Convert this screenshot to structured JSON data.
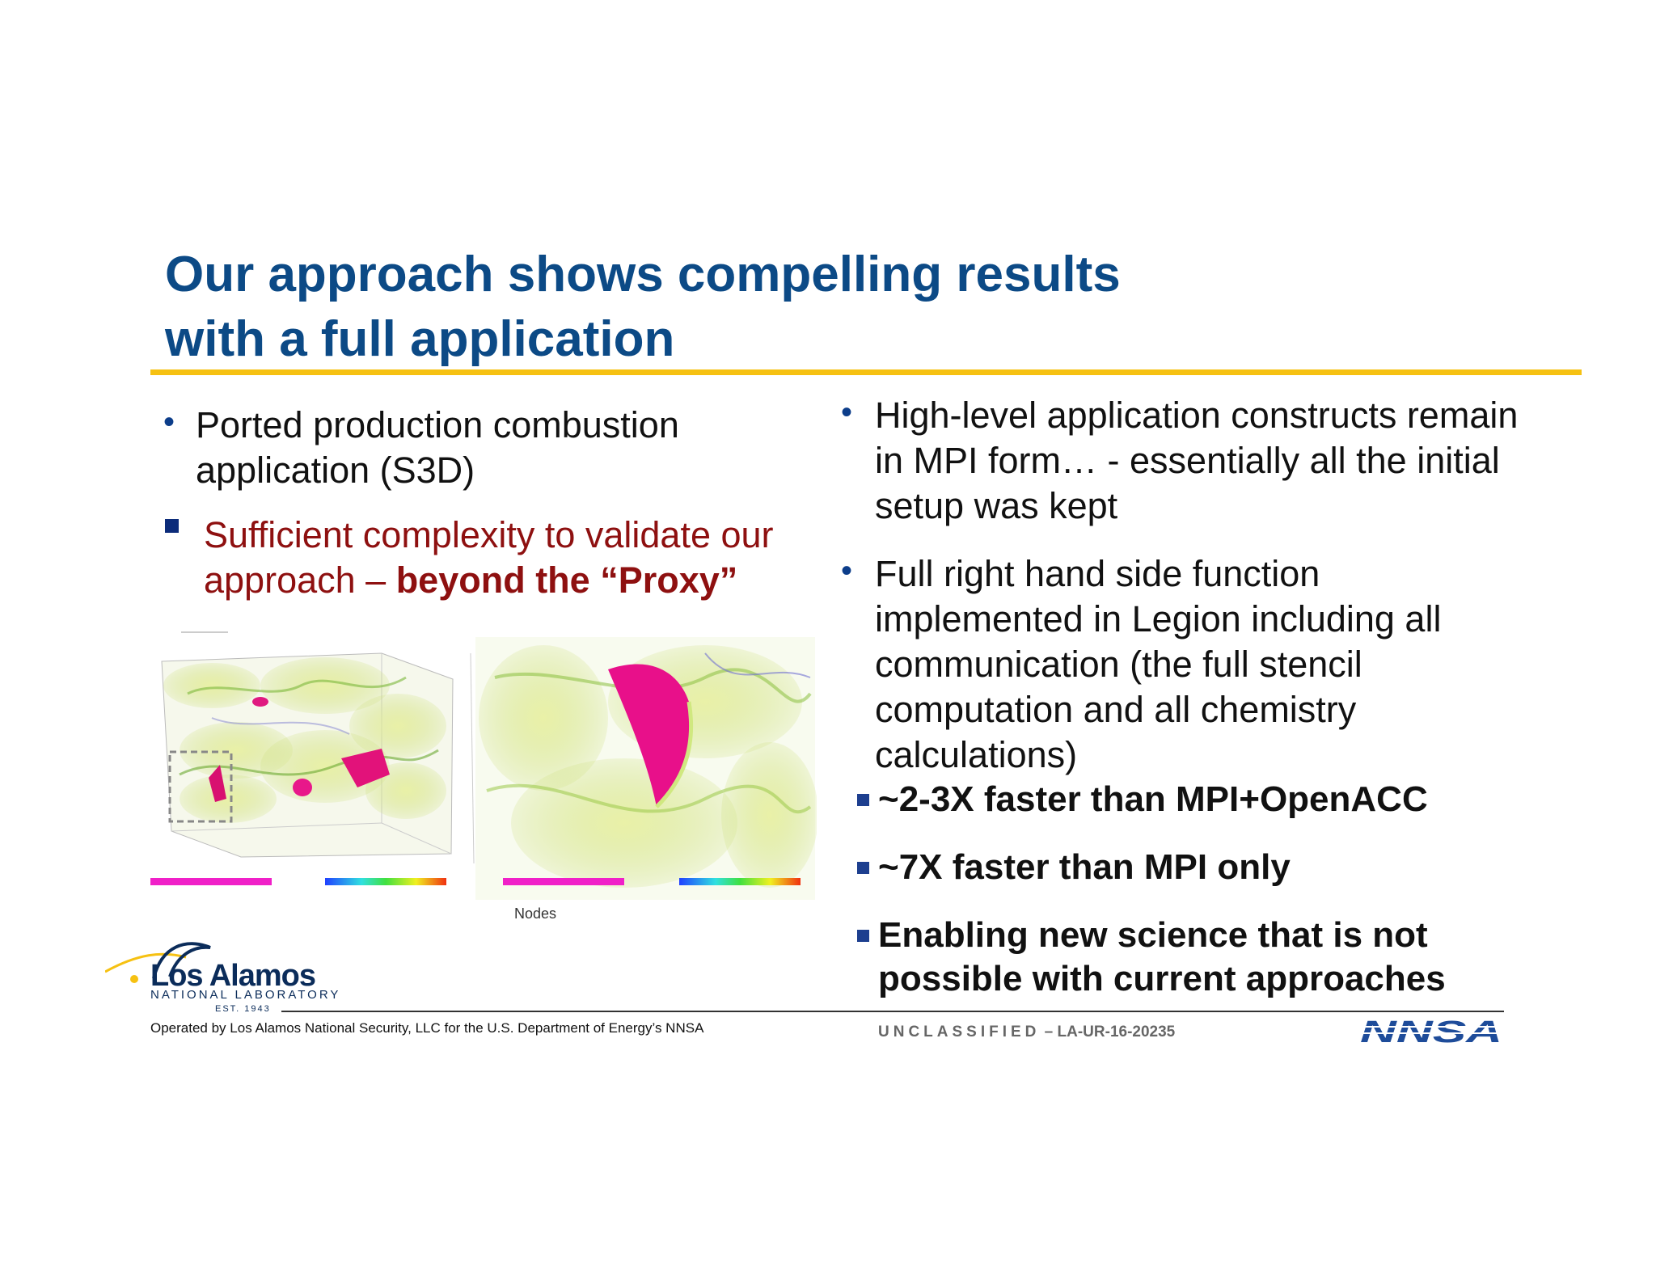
{
  "title": {
    "line1": "Our approach shows compelling results",
    "line2": "with a full application"
  },
  "left_column": {
    "bullet1": {
      "line1": "Ported production combustion",
      "line2": "application (S3D)"
    },
    "bullet2": {
      "line1": "Sufficient complexity to validate our",
      "line2_plain": "approach – ",
      "line2_bold": "beyond the “Proxy”"
    },
    "figure_caption": "Nodes"
  },
  "right_column": {
    "bullet1": {
      "line1": "High-level application constructs remain",
      "line2": "in MPI form… - essentially all the initial",
      "line3": "setup was kept"
    },
    "bullet2": {
      "line1": "Full right hand side function",
      "line2": "implemented in Legion including all",
      "line3": "communication (the full stencil",
      "line4": "computation and all chemistry",
      "line5": "calculations)"
    },
    "results": [
      {
        "line1": "~2-3X faster than MPI+OpenACC"
      },
      {
        "line1": "~7X faster than MPI only"
      },
      {
        "line1": "Enabling new science that is not",
        "line2": "possible with current approaches"
      }
    ]
  },
  "footer": {
    "logo_name": "Los Alamos",
    "logo_sub": "NATIONAL LABORATORY",
    "logo_est": "EST. 1943",
    "operated_by": "Operated by Los Alamos National Security, LLC for the U.S. Department of Energy’s NNSA",
    "classification": "UNCLASSIFIED",
    "doc_number": " – LA-UR-16-20235",
    "nnsa_logo_text": "NNSA"
  },
  "colors": {
    "title": "#0c4a86",
    "rule": "#f6c112",
    "red_text": "#8e1010",
    "bullet": "#0c3d8a"
  }
}
